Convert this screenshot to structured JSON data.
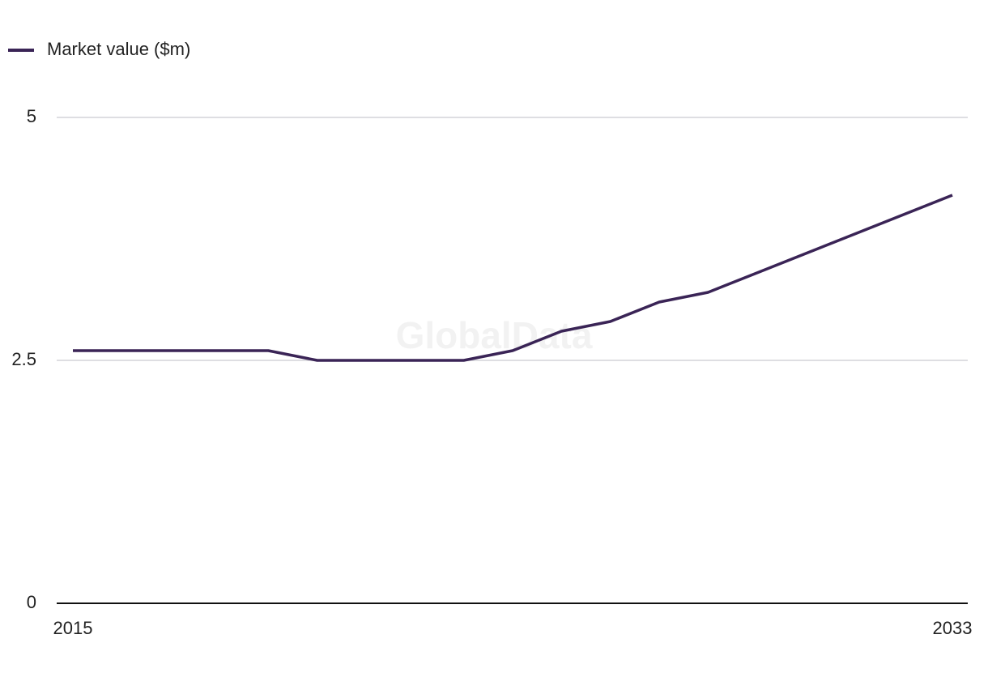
{
  "chart_data": {
    "type": "line",
    "watermark": "GlobalData",
    "x": [
      2015,
      2016,
      2017,
      2018,
      2019,
      2020,
      2021,
      2022,
      2023,
      2024,
      2025,
      2026,
      2027,
      2028,
      2029,
      2030,
      2031,
      2032,
      2033
    ],
    "series": [
      {
        "name": "Market value ($m)",
        "color": "#3a2456",
        "values": [
          2.6,
          2.6,
          2.6,
          2.6,
          2.6,
          2.5,
          2.5,
          2.5,
          2.5,
          2.6,
          2.8,
          2.9,
          3.1,
          3.2,
          3.4,
          3.6,
          3.8,
          4.0,
          4.2
        ]
      }
    ],
    "xlim": [
      2015,
      2033
    ],
    "xticks": [
      2015,
      2033
    ],
    "ylim": [
      0,
      5
    ],
    "yticks": [
      0,
      2.5,
      5
    ],
    "grid": true,
    "legend": "top-left"
  }
}
